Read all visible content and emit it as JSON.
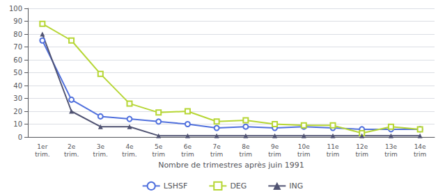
{
  "chart_data": {
    "type": "line",
    "categories": [
      "1er\ntrim.",
      "2e\ntrim.",
      "3e\ntrim.",
      "4e\ntrim.",
      "5e\ntrim",
      "6e\ntrim",
      "7e\ntrim",
      "8e\ntrim",
      "9e\ntrim",
      "10e\ntrim",
      "11e\ntrim",
      "12e\ntrim",
      "13e\ntrim",
      "14e\ntrim"
    ],
    "series": [
      {
        "name": "LSHSF",
        "marker": "circle",
        "values": [
          75,
          29,
          16,
          14,
          12,
          10,
          7,
          8,
          7,
          8,
          7,
          6,
          6,
          6
        ]
      },
      {
        "name": "DEG",
        "marker": "square",
        "values": [
          88,
          75,
          49,
          26,
          19,
          20,
          12,
          13,
          10,
          9,
          9,
          3,
          8,
          6
        ]
      },
      {
        "name": "ING",
        "marker": "triangle",
        "values": [
          80,
          20,
          8,
          8,
          1,
          1,
          1,
          1,
          1,
          1,
          1,
          1,
          1,
          1
        ]
      }
    ],
    "xlabel": "Nombre de trimestres après juin 1991",
    "ylim": [
      0,
      100
    ],
    "yticks": [
      0,
      10,
      20,
      30,
      40,
      50,
      60,
      70,
      80,
      90,
      100
    ],
    "grid": true,
    "legend": "bottom"
  }
}
